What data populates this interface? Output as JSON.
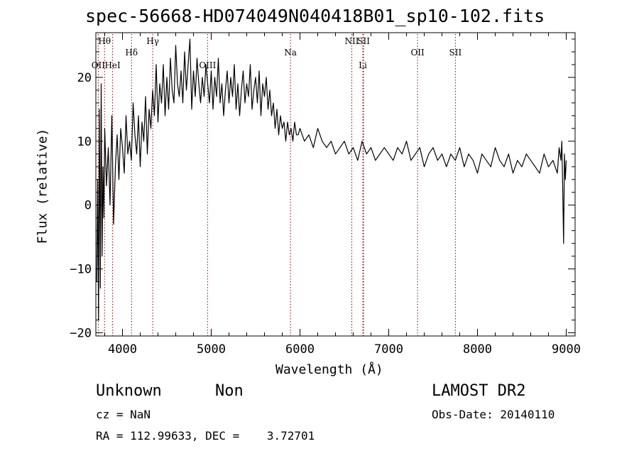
{
  "chart_data": {
    "type": "line",
    "title": "spec-56668-HD074049N040418B01_sp10-102.fits",
    "xlabel": "Wavelength (Å)",
    "ylabel": "Flux (relative)",
    "xlim": [
      3700,
      9100
    ],
    "ylim": [
      -20.5,
      27
    ],
    "x_ticks": [
      4000,
      5000,
      6000,
      7000,
      8000,
      9000
    ],
    "y_ticks": [
      -20,
      -10,
      0,
      10,
      20
    ],
    "grid": false,
    "line_color": "#000000",
    "marker_color": "#8b0000",
    "series": [
      {
        "x": [
          3710,
          3720,
          3730,
          3740,
          3750,
          3760,
          3770,
          3780,
          3790,
          3800,
          3820,
          3840,
          3860,
          3880,
          3900,
          3920,
          3940,
          3960,
          3980,
          4000,
          4020,
          4040,
          4060,
          4080,
          4100,
          4120,
          4140,
          4160,
          4180,
          4200,
          4220,
          4240,
          4260,
          4280,
          4300,
          4320,
          4340,
          4360,
          4380,
          4400,
          4420,
          4440,
          4460,
          4480,
          4500,
          4520,
          4540,
          4560,
          4580,
          4600,
          4620,
          4640,
          4660,
          4680,
          4700,
          4720,
          4740,
          4760,
          4780,
          4800,
          4820,
          4840,
          4860,
          4880,
          4900,
          4920,
          4940,
          4960,
          4980,
          5000,
          5020,
          5040,
          5060,
          5080,
          5100,
          5120,
          5140,
          5160,
          5180,
          5200,
          5220,
          5240,
          5260,
          5280,
          5300,
          5320,
          5340,
          5360,
          5380,
          5400,
          5420,
          5440,
          5460,
          5480,
          5500,
          5520,
          5540,
          5560,
          5580,
          5600,
          5620,
          5640,
          5660,
          5680,
          5700,
          5720,
          5740,
          5760,
          5780,
          5800,
          5820,
          5840,
          5860,
          5880,
          5900,
          5920,
          5940,
          5960,
          5980,
          6000,
          6050,
          6100,
          6150,
          6200,
          6250,
          6300,
          6350,
          6400,
          6450,
          6500,
          6550,
          6600,
          6650,
          6700,
          6750,
          6800,
          6850,
          6900,
          6950,
          7000,
          7050,
          7100,
          7150,
          7200,
          7250,
          7300,
          7350,
          7400,
          7450,
          7500,
          7550,
          7600,
          7650,
          7700,
          7750,
          7800,
          7850,
          7900,
          7950,
          8000,
          8050,
          8100,
          8150,
          8200,
          8250,
          8300,
          8350,
          8400,
          8450,
          8500,
          8550,
          8600,
          8650,
          8700,
          8750,
          8800,
          8850,
          8900,
          8920,
          8940,
          8950,
          8960,
          8970,
          8980,
          8990,
          9000
        ],
        "y": [
          -12,
          4,
          -18,
          15,
          -13,
          19,
          -8,
          6,
          -2,
          12,
          3,
          9,
          0,
          14,
          -3,
          6,
          11,
          4,
          12,
          9,
          5,
          14,
          8,
          10,
          7,
          16,
          11,
          8,
          14,
          6,
          13,
          10,
          17,
          8,
          15,
          12,
          18,
          14,
          22,
          13,
          19,
          16,
          22,
          14,
          20,
          15,
          23,
          18,
          16,
          25,
          19,
          17,
          21,
          16,
          24,
          18,
          22,
          26,
          15,
          21,
          17,
          23,
          19,
          16,
          20,
          17,
          22,
          19,
          16,
          21,
          15,
          20,
          17,
          23,
          16,
          19,
          14,
          18,
          21,
          16,
          20,
          17,
          22,
          15,
          19,
          14,
          18,
          21,
          16,
          19,
          17,
          22,
          15,
          18,
          20,
          16,
          21,
          14,
          19,
          17,
          20,
          15,
          18,
          14,
          16,
          12,
          15,
          11,
          14,
          12,
          13,
          10,
          13,
          11,
          12,
          10,
          13,
          11,
          11,
          12,
          10,
          11,
          9,
          12,
          10,
          9,
          10,
          8,
          9,
          10,
          8,
          9,
          7,
          10,
          8,
          9,
          7,
          8,
          9,
          8,
          7,
          9,
          8,
          10,
          7,
          8,
          9,
          6,
          8,
          9,
          7,
          8,
          6,
          8,
          7,
          9,
          6,
          8,
          7,
          5,
          8,
          7,
          6,
          9,
          7,
          6,
          8,
          5,
          7,
          6,
          8,
          7,
          6,
          5,
          8,
          6,
          7,
          5,
          9,
          7,
          10,
          3,
          -6,
          8,
          4,
          7
        ]
      }
    ],
    "line_markers": [
      {
        "label": "Hθ",
        "x": 3798,
        "row": 0
      },
      {
        "label": "OII",
        "x": 3727,
        "row": 2
      },
      {
        "label": "HeI",
        "x": 3889,
        "row": 2
      },
      {
        "label": "Hδ",
        "x": 4102,
        "row": 1
      },
      {
        "label": "Hγ",
        "x": 4341,
        "row": 0
      },
      {
        "label": "OIII",
        "x": 4959,
        "row": 2
      },
      {
        "label": "Na",
        "x": 5893,
        "row": 1
      },
      {
        "label": "NII",
        "x": 6584,
        "row": 0
      },
      {
        "label": "SII",
        "x": 6717,
        "row": 0
      },
      {
        "label": "Li",
        "x": 6708,
        "row": 2
      },
      {
        "label": "OII",
        "x": 7325,
        "row": 1
      },
      {
        "label": "SII",
        "x": 7751,
        "row": 1
      }
    ]
  },
  "footer": {
    "object": "Unknown",
    "subclass": "Non",
    "survey": "LAMOST DR2",
    "cz": "cz = NaN",
    "obs_date": "Obs-Date: 20140110",
    "coords": "RA = 112.99633, DEC =    3.72701"
  }
}
